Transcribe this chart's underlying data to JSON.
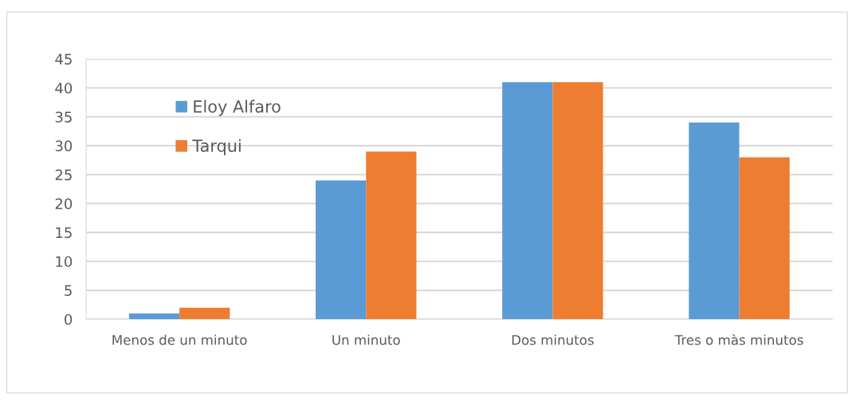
{
  "chart_data": {
    "type": "bar",
    "categories": [
      "Menos de un minuto",
      "Un minuto",
      "Dos minutos",
      "Tres o màs minutos"
    ],
    "series": [
      {
        "name": "Eloy Alfaro",
        "color": "#5b9bd5",
        "values": [
          1,
          24,
          41,
          34
        ]
      },
      {
        "name": "Tarqui",
        "color": "#ed7d31",
        "values": [
          2,
          29,
          41,
          28
        ]
      }
    ],
    "ylim": [
      0,
      45
    ],
    "yticks": [
      0,
      5,
      10,
      15,
      20,
      25,
      30,
      35,
      40,
      45
    ],
    "grid": "y",
    "legend": "top left"
  }
}
